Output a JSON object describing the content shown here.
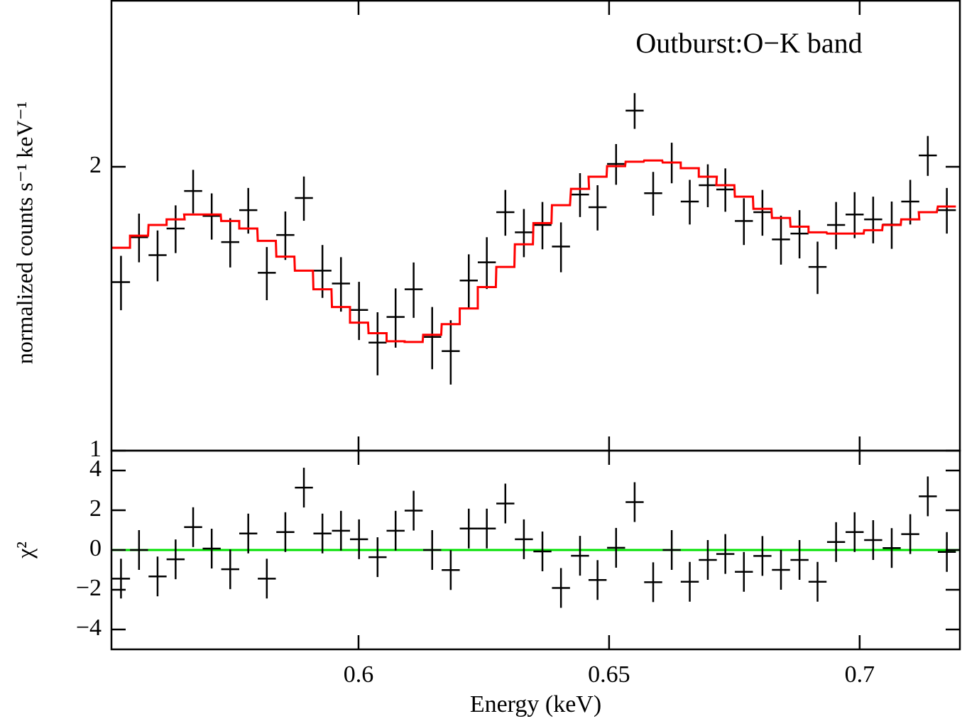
{
  "chart_data": [
    {
      "type": "errorbar",
      "annotation": "Outburst:O−K band",
      "ylabel": "normalized counts s⁻¹ keV⁻¹",
      "xlim": [
        0.5507,
        0.72
      ],
      "xticks": [
        0.6,
        0.65,
        0.7
      ],
      "ylim": [
        1,
        3
      ],
      "log_y": true,
      "yticks": [
        1,
        2
      ],
      "x": [
        0.5526,
        0.5562,
        0.5599,
        0.5635,
        0.567,
        0.5707,
        0.5744,
        0.578,
        0.5817,
        0.5854,
        0.5891,
        0.5928,
        0.5965,
        0.6001,
        0.6038,
        0.6074,
        0.611,
        0.6147,
        0.6184,
        0.622,
        0.6256,
        0.6293,
        0.633,
        0.6367,
        0.6404,
        0.6442,
        0.6477,
        0.6514,
        0.6551,
        0.6588,
        0.6625,
        0.6661,
        0.6697,
        0.6732,
        0.6769,
        0.6806,
        0.6843,
        0.688,
        0.6916,
        0.6953,
        0.699,
        0.7027,
        0.7064,
        0.7101,
        0.7136,
        0.7174
      ],
      "xerr": 0.0018,
      "series": [
        {
          "name": "data",
          "color": "#000000",
          "yerr": 0.1,
          "values": [
            1.509,
            1.684,
            1.612,
            1.72,
            1.885,
            1.774,
            1.664,
            1.799,
            1.544,
            1.693,
            1.853,
            1.552,
            1.504,
            1.41,
            1.302,
            1.386,
            1.483,
            1.32,
            1.275,
            1.515,
            1.584,
            1.79,
            1.704,
            1.735,
            1.646,
            1.869,
            1.812,
            2.014,
            2.294,
            1.875,
            2.021,
            1.837,
            1.912,
            1.892,
            1.752,
            1.79,
            1.675,
            1.699,
            1.566,
            1.735,
            1.78,
            1.759,
            1.737,
            1.837,
            2.056,
            1.799
          ]
        },
        {
          "name": "model",
          "color": "#ff0000",
          "step": true,
          "values": [
            1.641,
            1.69,
            1.735,
            1.759,
            1.78,
            1.78,
            1.752,
            1.72,
            1.669,
            1.606,
            1.552,
            1.483,
            1.42,
            1.367,
            1.332,
            1.306,
            1.304,
            1.327,
            1.362,
            1.415,
            1.491,
            1.566,
            1.655,
            1.743,
            1.821,
            1.895,
            1.952,
            2.003,
            2.025,
            2.031,
            2.021,
            1.993,
            1.952,
            1.912,
            1.859,
            1.805,
            1.765,
            1.728,
            1.704,
            1.699,
            1.699,
            1.713,
            1.735,
            1.759,
            1.79,
            1.815
          ]
        }
      ]
    },
    {
      "type": "errorbar",
      "ylabel": "χ²",
      "xlabel": "Energy (keV)",
      "xlim": [
        0.5507,
        0.72
      ],
      "xticks": [
        0.6,
        0.65,
        0.7
      ],
      "ylim": [
        -5,
        5
      ],
      "yticks": [
        {
          "value": -4,
          "label": "−4"
        },
        {
          "value": -2,
          "label": "−2"
        },
        0,
        2,
        4
      ],
      "reference_line": 0,
      "reference_color": "#00e000",
      "x": [
        0.5526,
        0.5562,
        0.5599,
        0.5635,
        0.567,
        0.5707,
        0.5744,
        0.578,
        0.5817,
        0.5854,
        0.5891,
        0.5928,
        0.5965,
        0.6001,
        0.6038,
        0.6074,
        0.611,
        0.6147,
        0.6184,
        0.622,
        0.6256,
        0.6293,
        0.633,
        0.6367,
        0.6404,
        0.6442,
        0.6477,
        0.6514,
        0.6551,
        0.6588,
        0.6625,
        0.6661,
        0.6697,
        0.6732,
        0.6769,
        0.6806,
        0.6843,
        0.688,
        0.6916,
        0.6953,
        0.699,
        0.7027,
        0.7064,
        0.7101,
        0.7136,
        0.7174
      ],
      "xerr": 0.0018,
      "series": [
        {
          "name": "residuals",
          "color": "#000000",
          "yerr": 1,
          "values": [
            -1.44,
            0,
            -1.33,
            -0.47,
            1.15,
            0.07,
            -0.97,
            0.83,
            -1.44,
            0.9,
            3.14,
            0.83,
            0.97,
            0.54,
            -0.36,
            0.97,
            1.98,
            0,
            -1.01,
            1.08,
            1.08,
            2.34,
            0.54,
            -0.07,
            -1.91,
            -0.29,
            -1.51,
            0.11,
            2.41,
            -1.62,
            0,
            -1.6,
            -0.5,
            -0.2,
            -1.1,
            -0.3,
            -1.0,
            -0.5,
            -1.6,
            0.4,
            0.9,
            0.5,
            0.1,
            0.8,
            2.7,
            -0.1
          ]
        }
      ]
    }
  ]
}
